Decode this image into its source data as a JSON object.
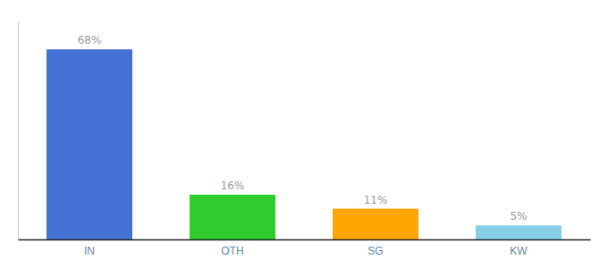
{
  "chart_data": {
    "type": "bar",
    "categories": [
      "IN",
      "OTH",
      "SG",
      "KW"
    ],
    "values": [
      68,
      16,
      11,
      5
    ],
    "value_labels": [
      "68%",
      "16%",
      "11%",
      "5%"
    ],
    "colors": [
      "#4472d4",
      "#2ecc2e",
      "#ffa500",
      "#87ceeb"
    ],
    "ylim": [
      0,
      78
    ],
    "data_labels": true,
    "tick_labels": "x",
    "grid": false
  }
}
